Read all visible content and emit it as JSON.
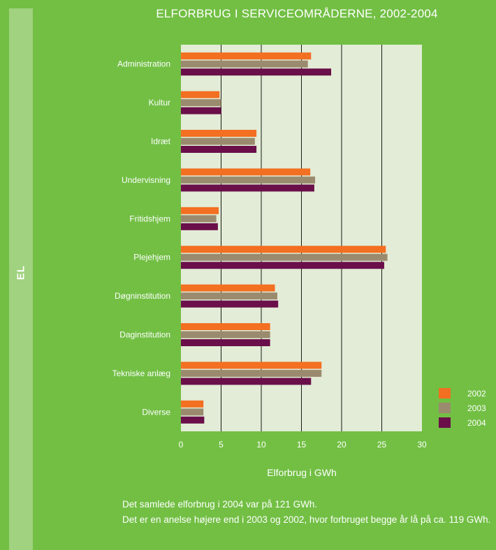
{
  "side": {
    "label": "EL"
  },
  "chart_data": {
    "type": "bar",
    "orientation": "horizontal",
    "title": "ELFORBRUG I SERVICEOMRÅDERNE, 2002-2004",
    "xlabel": "Elforbrug i GWh",
    "ylabel": "",
    "xlim": [
      0,
      30
    ],
    "xticks": [
      "0",
      "5",
      "10",
      "15",
      "20",
      "25",
      "30"
    ],
    "grid": "vertical",
    "legend": "bottom-right",
    "categories": [
      "Administration",
      "Kultur",
      "Idræt",
      "Undervisning",
      "Fritidshjem",
      "Plejehjem",
      "Døgninstitution",
      "Daginstitution",
      "Tekniske anlæg",
      "Diverse"
    ],
    "series": [
      {
        "name": "2002",
        "color": "#f36f21",
        "values": [
          16.2,
          4.8,
          9.4,
          16.1,
          4.7,
          25.5,
          11.7,
          11.1,
          17.5,
          2.8
        ]
      },
      {
        "name": "2003",
        "color": "#9b8b6e",
        "values": [
          15.8,
          5.0,
          9.2,
          16.7,
          4.4,
          25.7,
          12.0,
          11.1,
          17.5,
          2.8
        ]
      },
      {
        "name": "2004",
        "color": "#6a0f4a",
        "values": [
          18.7,
          5.0,
          9.4,
          16.6,
          4.6,
          25.3,
          12.1,
          11.1,
          16.2,
          2.9
        ]
      }
    ]
  },
  "caption": {
    "line1": "Det samlede elforbrug i 2004 var på 121 GWh.",
    "line2": "Det er en anelse højere end i 2003 og 2002, hvor forbruget begge år lå på ca. 119 GWh."
  }
}
